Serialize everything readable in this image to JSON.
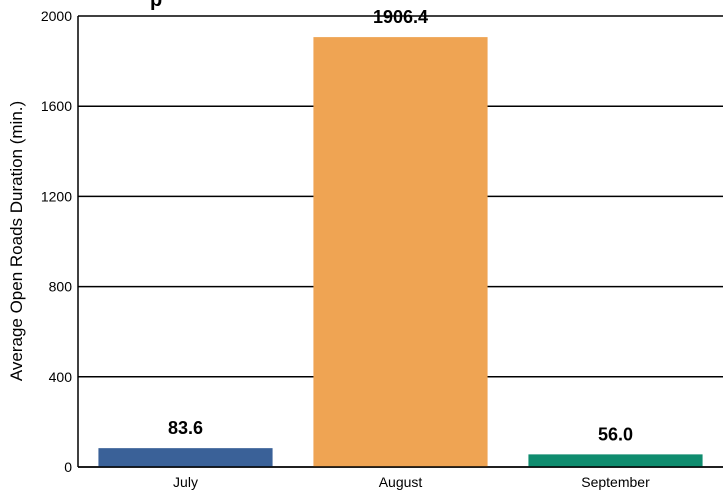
{
  "chart_data": {
    "type": "bar",
    "title": "",
    "title_fragment": "p",
    "categories": [
      "July",
      "August",
      "September"
    ],
    "values": [
      83.6,
      1906.4,
      56.0
    ],
    "value_labels": [
      "83.6",
      "1906.4",
      "56.0"
    ],
    "ylabel": "Average Open Roads Duration (min.)",
    "xlabel": "",
    "ylim": [
      0,
      2000
    ],
    "yticks": [
      0,
      400,
      800,
      1200,
      1600,
      2000
    ],
    "ytick_labels": [
      "0",
      "400",
      "800",
      "1200",
      "1600",
      "2000"
    ],
    "grid": "horizontal",
    "colors": [
      "#3a6198",
      "#efa453",
      "#0f8c6e"
    ]
  }
}
